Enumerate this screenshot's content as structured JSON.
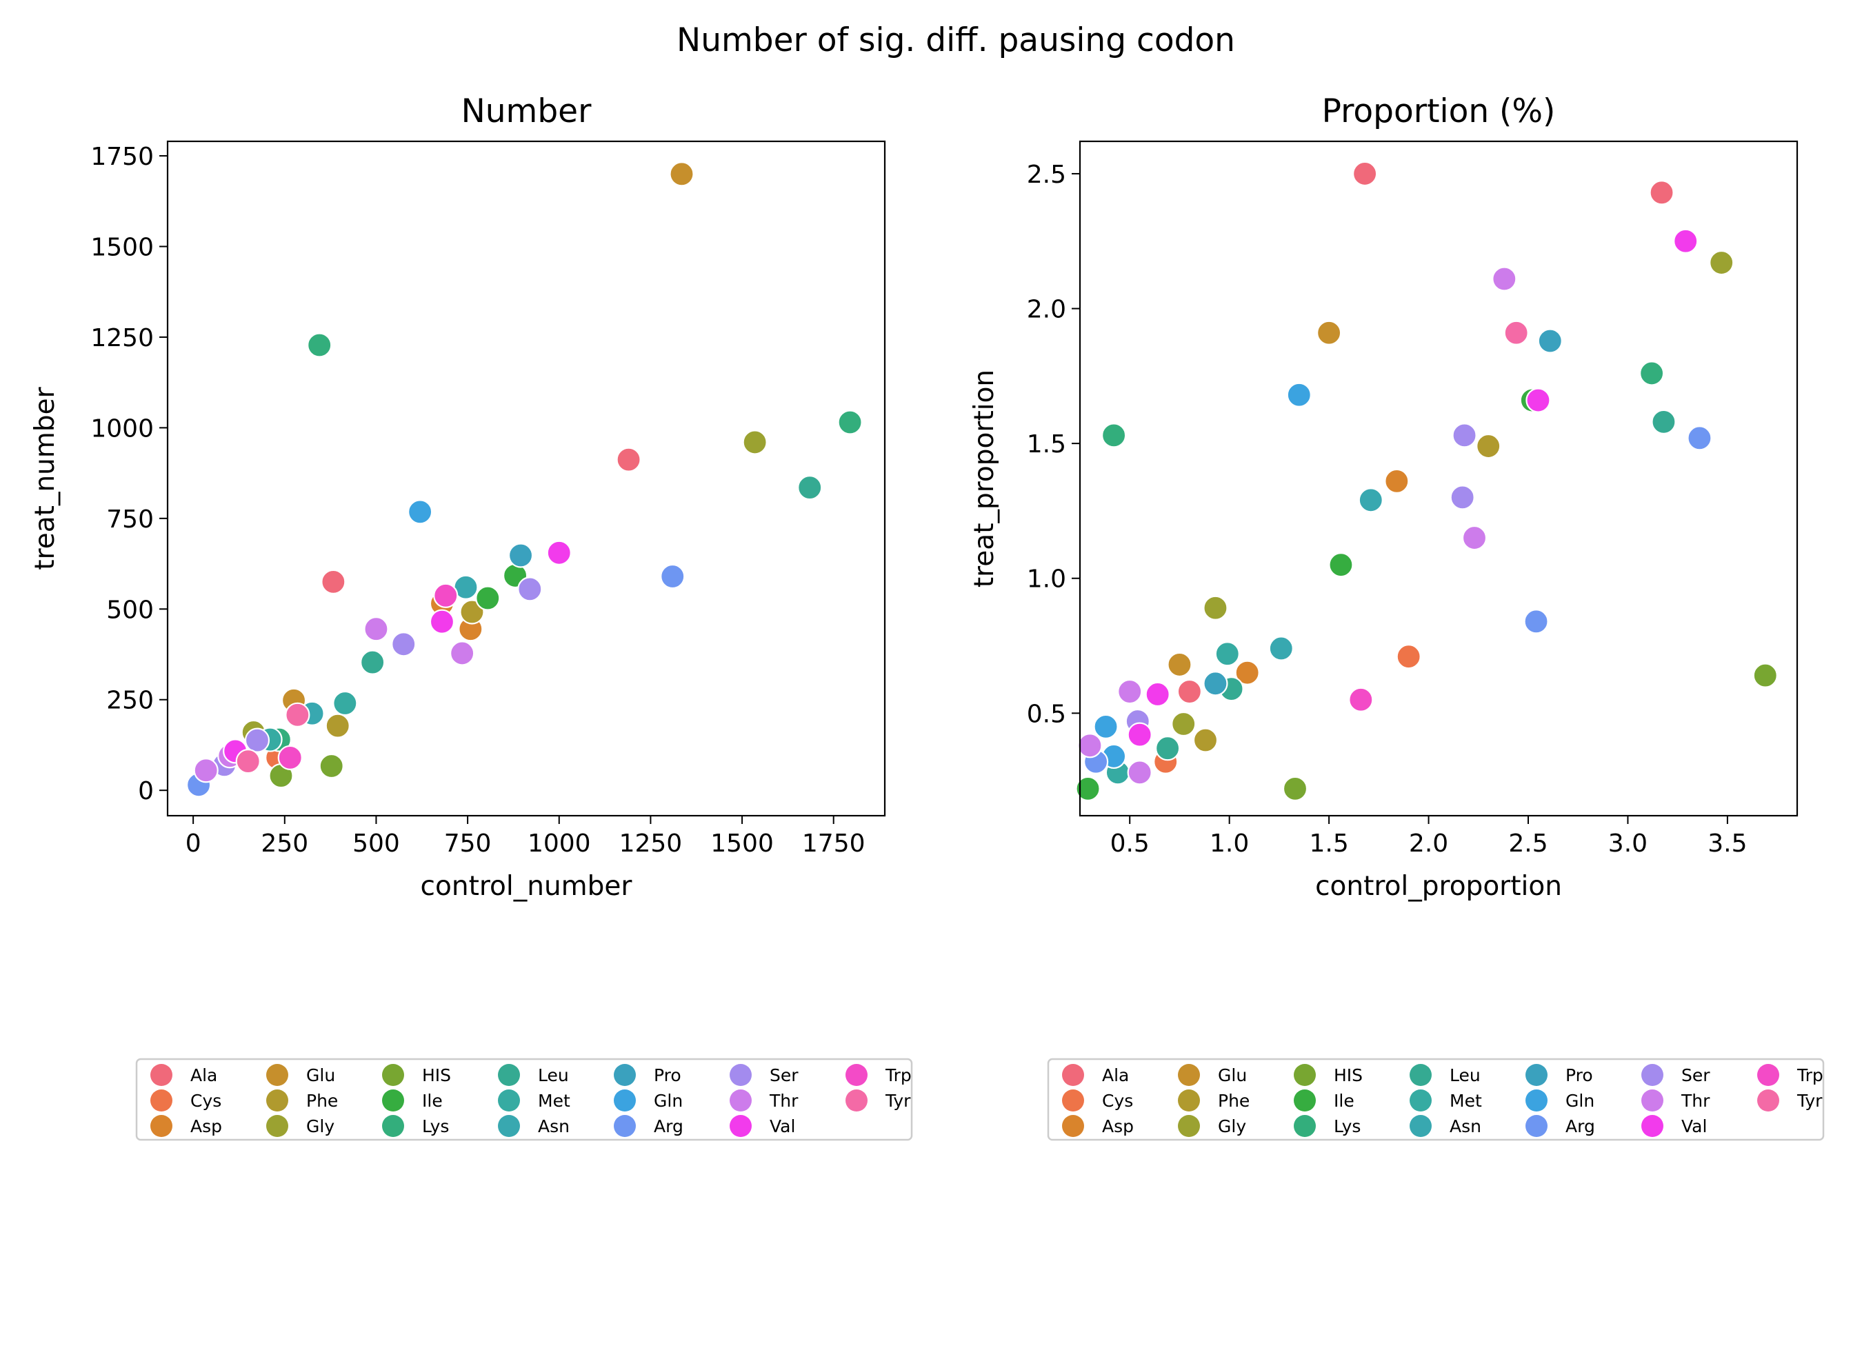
{
  "figure": {
    "suptitle": "Number of sig. diff. pausing codon",
    "legend_entries": [
      {
        "label": "Ala",
        "color": "#f0697a"
      },
      {
        "label": "Cys",
        "color": "#ee7448"
      },
      {
        "label": "Asp",
        "color": "#d9842c"
      },
      {
        "label": "Glu",
        "color": "#c68f2c"
      },
      {
        "label": "Phe",
        "color": "#b09a2e"
      },
      {
        "label": "Gly",
        "color": "#9ba231"
      },
      {
        "label": "HIS",
        "color": "#78a631"
      },
      {
        "label": "Ile",
        "color": "#36ad40"
      },
      {
        "label": "Lys",
        "color": "#33ae7c"
      },
      {
        "label": "Leu",
        "color": "#35aa92"
      },
      {
        "label": "Met",
        "color": "#36aba2"
      },
      {
        "label": "Asn",
        "color": "#38a8b0"
      },
      {
        "label": "Pro",
        "color": "#3aa1be"
      },
      {
        "label": "Gln",
        "color": "#3ba3e0"
      },
      {
        "label": "Arg",
        "color": "#6e96f2"
      },
      {
        "label": "Ser",
        "color": "#a38bee"
      },
      {
        "label": "Thr",
        "color": "#cd7ceb"
      },
      {
        "label": "Val",
        "color": "#f23bec"
      },
      {
        "label": "Trp",
        "color": "#f34bc7"
      },
      {
        "label": "Tyr",
        "color": "#f46aa6"
      }
    ]
  },
  "chart_data": [
    {
      "type": "scatter",
      "title": "Number",
      "xlabel": "control_number",
      "ylabel": "treat_number",
      "xlim": [
        -70,
        1890
      ],
      "ylim": [
        -70,
        1790
      ],
      "xticks": [
        0,
        250,
        500,
        750,
        1000,
        1250,
        1500,
        1750
      ],
      "yticks": [
        0,
        250,
        500,
        750,
        1000,
        1250,
        1500,
        1750
      ],
      "series": [
        {
          "name": "Ala",
          "color": "#f0697a",
          "points": [
            [
              1190,
              912
            ],
            [
              383,
              575
            ]
          ]
        },
        {
          "name": "Cys",
          "color": "#ee7448",
          "points": [
            [
              230,
              90
            ]
          ]
        },
        {
          "name": "Asp",
          "color": "#d9842c",
          "points": [
            [
              758,
              445
            ],
            [
              680,
              515
            ]
          ]
        },
        {
          "name": "Glu",
          "color": "#c68f2c",
          "points": [
            [
              1335,
              1700
            ],
            [
              275,
              248
            ]
          ]
        },
        {
          "name": "Phe",
          "color": "#b09a2e",
          "points": [
            [
              762,
              492
            ],
            [
              395,
              178
            ]
          ]
        },
        {
          "name": "Gly",
          "color": "#9ba231",
          "points": [
            [
              1535,
              960
            ],
            [
              165,
              160
            ]
          ]
        },
        {
          "name": "HIS",
          "color": "#78a631",
          "points": [
            [
              378,
              67
            ],
            [
              240,
              40
            ]
          ]
        },
        {
          "name": "Ile",
          "color": "#36ad40",
          "points": [
            [
              880,
              592
            ],
            [
              805,
              530
            ]
          ]
        },
        {
          "name": "Lys",
          "color": "#33ae7c",
          "points": [
            [
              345,
              1228
            ],
            [
              1795,
              1015
            ],
            [
              235,
              140
            ]
          ]
        },
        {
          "name": "Leu",
          "color": "#35aa92",
          "points": [
            [
              1685,
              835
            ],
            [
              490,
              353
            ]
          ]
        },
        {
          "name": "Met",
          "color": "#36aba2",
          "points": [
            [
              415,
              240
            ],
            [
              210,
              140
            ]
          ]
        },
        {
          "name": "Asn",
          "color": "#38a8b0",
          "points": [
            [
              745,
              560
            ],
            [
              325,
              212
            ]
          ]
        },
        {
          "name": "Pro",
          "color": "#3aa1be",
          "points": [
            [
              895,
              648
            ]
          ]
        },
        {
          "name": "Gln",
          "color": "#3ba3e0",
          "points": [
            [
              620,
              768
            ]
          ]
        },
        {
          "name": "Arg",
          "color": "#6e96f2",
          "points": [
            [
              1310,
              590
            ],
            [
              15,
              15
            ]
          ]
        },
        {
          "name": "Ser",
          "color": "#a38bee",
          "points": [
            [
              920,
              555
            ],
            [
              575,
              403
            ],
            [
              175,
              138
            ],
            [
              85,
              70
            ]
          ]
        },
        {
          "name": "Thr",
          "color": "#cd7ceb",
          "points": [
            [
              500,
              445
            ],
            [
              735,
              378
            ],
            [
              100,
              95
            ],
            [
              35,
              55
            ]
          ]
        },
        {
          "name": "Val",
          "color": "#f23bec",
          "points": [
            [
              1000,
              655
            ],
            [
              680,
              465
            ],
            [
              115,
              108
            ]
          ]
        },
        {
          "name": "Trp",
          "color": "#f34bc7",
          "points": [
            [
              690,
              537
            ],
            [
              265,
              90
            ]
          ]
        },
        {
          "name": "Tyr",
          "color": "#f46aa6",
          "points": [
            [
              285,
              208
            ],
            [
              150,
              80
            ]
          ]
        }
      ]
    },
    {
      "type": "scatter",
      "title": "Proportion (%)",
      "xlabel": "control_proportion",
      "ylabel": "treat_proportion",
      "xlim": [
        0.25,
        3.85
      ],
      "ylim": [
        0.12,
        2.62
      ],
      "xticks": [
        0.5,
        1.0,
        1.5,
        2.0,
        2.5,
        3.0,
        3.5
      ],
      "yticks": [
        0.5,
        1.0,
        1.5,
        2.0,
        2.5
      ],
      "series": [
        {
          "name": "Ala",
          "color": "#f0697a",
          "points": [
            [
              1.68,
              2.5
            ],
            [
              3.17,
              2.43
            ],
            [
              0.8,
              0.58
            ]
          ]
        },
        {
          "name": "Cys",
          "color": "#ee7448",
          "points": [
            [
              1.9,
              0.71
            ],
            [
              0.68,
              0.32
            ]
          ]
        },
        {
          "name": "Asp",
          "color": "#d9842c",
          "points": [
            [
              1.84,
              1.36
            ],
            [
              1.09,
              0.65
            ]
          ]
        },
        {
          "name": "Glu",
          "color": "#c68f2c",
          "points": [
            [
              1.5,
              1.91
            ],
            [
              0.75,
              0.68
            ]
          ]
        },
        {
          "name": "Phe",
          "color": "#b09a2e",
          "points": [
            [
              2.3,
              1.49
            ],
            [
              0.88,
              0.4
            ]
          ]
        },
        {
          "name": "Gly",
          "color": "#9ba231",
          "points": [
            [
              3.47,
              2.17
            ],
            [
              0.93,
              0.89
            ],
            [
              0.77,
              0.46
            ]
          ]
        },
        {
          "name": "HIS",
          "color": "#78a631",
          "points": [
            [
              3.69,
              0.64
            ],
            [
              1.33,
              0.22
            ]
          ]
        },
        {
          "name": "Ile",
          "color": "#36ad40",
          "points": [
            [
              2.52,
              1.66
            ],
            [
              1.56,
              1.05
            ],
            [
              0.29,
              0.22
            ]
          ]
        },
        {
          "name": "Lys",
          "color": "#33ae7c",
          "points": [
            [
              0.42,
              1.53
            ],
            [
              3.12,
              1.76
            ]
          ]
        },
        {
          "name": "Leu",
          "color": "#35aa92",
          "points": [
            [
              3.18,
              1.58
            ],
            [
              1.01,
              0.59
            ],
            [
              0.69,
              0.37
            ]
          ]
        },
        {
          "name": "Met",
          "color": "#36aba2",
          "points": [
            [
              0.99,
              0.72
            ],
            [
              0.44,
              0.28
            ]
          ]
        },
        {
          "name": "Asn",
          "color": "#38a8b0",
          "points": [
            [
              1.71,
              1.29
            ],
            [
              1.26,
              0.74
            ]
          ]
        },
        {
          "name": "Pro",
          "color": "#3aa1be",
          "points": [
            [
              2.61,
              1.88
            ],
            [
              0.93,
              0.61
            ]
          ]
        },
        {
          "name": "Gln",
          "color": "#3ba3e0",
          "points": [
            [
              1.35,
              1.68
            ],
            [
              0.38,
              0.45
            ],
            [
              0.42,
              0.34
            ]
          ]
        },
        {
          "name": "Arg",
          "color": "#6e96f2",
          "points": [
            [
              3.36,
              1.52
            ],
            [
              2.54,
              0.84
            ],
            [
              0.33,
              0.32
            ]
          ]
        },
        {
          "name": "Ser",
          "color": "#a38bee",
          "points": [
            [
              2.17,
              1.3
            ],
            [
              2.18,
              1.53
            ],
            [
              0.54,
              0.47
            ]
          ]
        },
        {
          "name": "Thr",
          "color": "#cd7ceb",
          "points": [
            [
              2.38,
              2.11
            ],
            [
              2.23,
              1.15
            ],
            [
              0.5,
              0.58
            ],
            [
              0.3,
              0.38
            ],
            [
              0.55,
              0.28
            ]
          ]
        },
        {
          "name": "Val",
          "color": "#f23bec",
          "points": [
            [
              3.29,
              2.25
            ],
            [
              2.55,
              1.66
            ],
            [
              0.64,
              0.57
            ],
            [
              0.55,
              0.42
            ]
          ]
        },
        {
          "name": "Trp",
          "color": "#f34bc7",
          "points": [
            [
              1.66,
              0.55
            ]
          ]
        },
        {
          "name": "Tyr",
          "color": "#f46aa6",
          "points": [
            [
              2.44,
              1.91
            ]
          ]
        }
      ]
    }
  ]
}
